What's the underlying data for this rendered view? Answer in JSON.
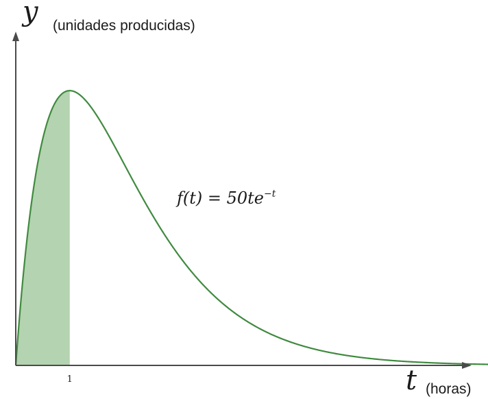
{
  "chart_data": {
    "type": "area",
    "function_label": {
      "lhs": "f(t) = 50te",
      "exponent": "−t"
    },
    "axes": {
      "x_symbol": "t",
      "x_unit": "(horas)",
      "y_symbol": "y",
      "y_unit": "(unidades producidas)",
      "x_ticks": [
        {
          "value": 1,
          "label": "1"
        }
      ]
    },
    "xlim": [
      0,
      8.75
    ],
    "ylim": [
      0,
      21.8
    ],
    "shaded_interval": [
      0,
      1
    ],
    "grid": false,
    "colors": {
      "curve": "#3f8a3f",
      "shade": "#b4d3b0",
      "axes": "#4a4a4a"
    }
  }
}
